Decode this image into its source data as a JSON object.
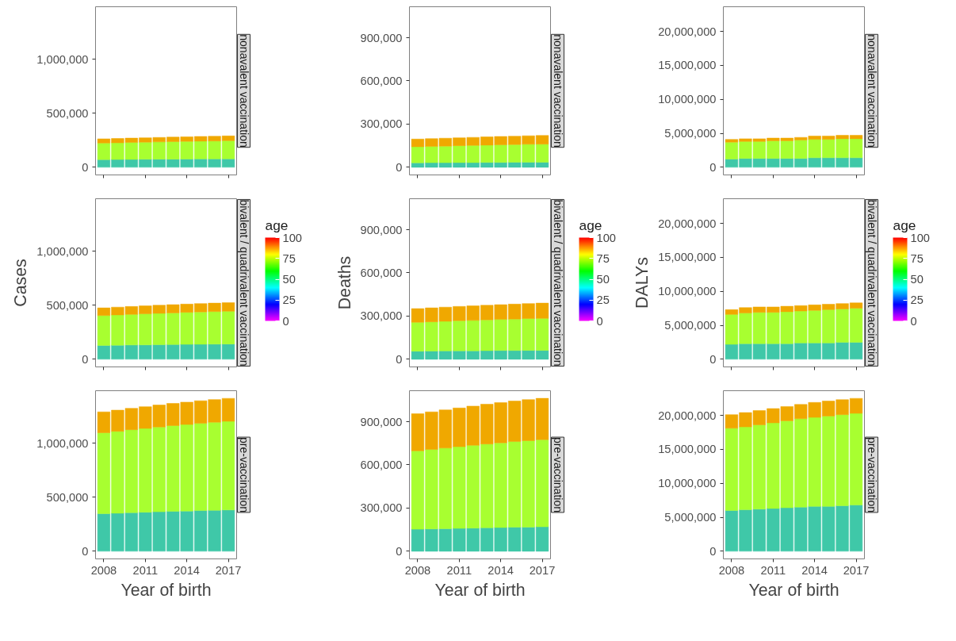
{
  "chart_data": [
    {
      "type": "bar",
      "stacked": true,
      "title": "nonavalent vaccination",
      "x": [
        2008,
        2009,
        2010,
        2011,
        2012,
        2013,
        2014,
        2015,
        2016,
        2017
      ],
      "xlim": [
        2007.4,
        2017.6
      ],
      "xticks": [
        2008,
        2011,
        2014,
        2017
      ],
      "ylim": [
        -70700,
        1484700
      ],
      "yticks": [
        0,
        {
          "value": 500000,
          "label": "500,000"
        },
        {
          "value": 1000000,
          "label": "1,000,000"
        }
      ],
      "tick_labels": "y",
      "grid": false,
      "series": [
        {
          "color": "#3fc8a8",
          "values": [
            71000,
            72000,
            73000,
            74000,
            75000,
            75000,
            76000,
            77000,
            77000,
            78000
          ]
        },
        {
          "color": "#a8ff30",
          "values": [
            153000,
            154000,
            157000,
            158000,
            160000,
            162000,
            164000,
            165000,
            166000,
            168000
          ]
        },
        {
          "color": "#f0a800",
          "values": [
            39000,
            40000,
            40000,
            41000,
            41000,
            42000,
            42000,
            43000,
            44000,
            44000
          ]
        }
      ]
    },
    {
      "type": "bar",
      "stacked": true,
      "title": "nonavalent vaccination",
      "x": [
        2008,
        2009,
        2010,
        2011,
        2012,
        2013,
        2014,
        2015,
        2016,
        2017
      ],
      "xlim": [
        2007.4,
        2017.6
      ],
      "xticks": [
        2008,
        2011,
        2014,
        2017
      ],
      "ylim": [
        -53000,
        1115000
      ],
      "yticks": [
        0,
        {
          "value": 300000,
          "label": "300,000"
        },
        {
          "value": 600000,
          "label": "600,000"
        },
        {
          "value": 900000,
          "label": "900,000"
        }
      ],
      "tick_labels": "y",
      "grid": false,
      "series": [
        {
          "color": "#3fc8a8",
          "values": [
            31000,
            32000,
            32000,
            33000,
            33000,
            34000,
            34000,
            35000,
            35000,
            35000
          ]
        },
        {
          "color": "#a8ff30",
          "values": [
            112000,
            113000,
            115000,
            117000,
            119000,
            120000,
            122000,
            123000,
            125000,
            126000
          ]
        },
        {
          "color": "#f0a800",
          "values": [
            53000,
            54000,
            55000,
            55000,
            56000,
            57000,
            58000,
            58000,
            59000,
            60000
          ]
        }
      ]
    },
    {
      "type": "bar",
      "stacked": true,
      "title": "nonavalent vaccination",
      "x": [
        2008,
        2009,
        2010,
        2011,
        2012,
        2013,
        2014,
        2015,
        2016,
        2017
      ],
      "xlim": [
        2007.4,
        2017.6
      ],
      "xticks": [
        2008,
        2011,
        2014,
        2017
      ],
      "ylim": [
        -1125000,
        23625000
      ],
      "yticks": [
        0,
        {
          "value": 5000000,
          "label": "5,000,000"
        },
        {
          "value": 10000000,
          "label": "10,000,000"
        },
        {
          "value": 15000000,
          "label": "15,000,000"
        },
        {
          "value": 20000000,
          "label": "20,000,000"
        }
      ],
      "tick_labels": "y",
      "grid": false,
      "series": [
        {
          "color": "#3fc8a8",
          "values": [
            1200000,
            1300000,
            1300000,
            1300000,
            1300000,
            1300000,
            1400000,
            1400000,
            1400000,
            1400000
          ]
        },
        {
          "color": "#a8ff30",
          "values": [
            2500000,
            2500000,
            2500000,
            2600000,
            2600000,
            2700000,
            2700000,
            2700000,
            2800000,
            2800000
          ]
        },
        {
          "color": "#f0a800",
          "values": [
            400000,
            400000,
            400000,
            400000,
            400000,
            400000,
            500000,
            500000,
            500000,
            500000
          ]
        }
      ]
    },
    {
      "type": "bar",
      "stacked": true,
      "title": "bivalent / quadrivalent vaccination",
      "ylabel": "Cases",
      "clabel": "age",
      "clim": [
        0,
        100
      ],
      "cticks": [
        0,
        25,
        50,
        75,
        100
      ],
      "x": [
        2008,
        2009,
        2010,
        2011,
        2012,
        2013,
        2014,
        2015,
        2016,
        2017
      ],
      "xlim": [
        2007.4,
        2017.6
      ],
      "xticks": [
        2008,
        2011,
        2014,
        2017
      ],
      "ylim": [
        -70700,
        1484700
      ],
      "yticks": [
        0,
        {
          "value": 500000,
          "label": "500,000"
        },
        {
          "value": 1000000,
          "label": "1,000,000"
        }
      ],
      "tick_labels": "y",
      "grid": false,
      "series": [
        {
          "color": "#3fc8a8",
          "values": [
            128000,
            130000,
            132000,
            133000,
            135000,
            136000,
            138000,
            139000,
            140000,
            141000
          ]
        },
        {
          "color": "#a8ff30",
          "values": [
            276000,
            280000,
            283000,
            287000,
            290000,
            293000,
            296000,
            299000,
            301000,
            303000
          ]
        },
        {
          "color": "#f0a800",
          "values": [
            71000,
            72000,
            73000,
            74000,
            75000,
            76000,
            76000,
            77000,
            78000,
            79000
          ]
        }
      ]
    },
    {
      "type": "bar",
      "stacked": true,
      "title": "bivalent / quadrivalent vaccination",
      "ylabel": "Deaths",
      "clabel": "age",
      "clim": [
        0,
        100
      ],
      "cticks": [
        0,
        25,
        50,
        75,
        100
      ],
      "x": [
        2008,
        2009,
        2010,
        2011,
        2012,
        2013,
        2014,
        2015,
        2016,
        2017
      ],
      "xlim": [
        2007.4,
        2017.6
      ],
      "xticks": [
        2008,
        2011,
        2014,
        2017
      ],
      "ylim": [
        -53000,
        1115000
      ],
      "yticks": [
        0,
        {
          "value": 300000,
          "label": "300,000"
        },
        {
          "value": 600000,
          "label": "600,000"
        },
        {
          "value": 900000,
          "label": "900,000"
        }
      ],
      "tick_labels": "y",
      "grid": false,
      "series": [
        {
          "color": "#3fc8a8",
          "values": [
            56000,
            57000,
            58000,
            59000,
            59000,
            60000,
            61000,
            61000,
            62000,
            62000
          ]
        },
        {
          "color": "#a8ff30",
          "values": [
            201000,
            203000,
            206000,
            209000,
            211000,
            214000,
            216000,
            218000,
            221000,
            222000
          ]
        },
        {
          "color": "#f0a800",
          "values": [
            95000,
            97000,
            98000,
            99000,
            101000,
            101000,
            102000,
            104000,
            104000,
            106000
          ]
        }
      ]
    },
    {
      "type": "bar",
      "stacked": true,
      "title": "bivalent / quadrivalent vaccination",
      "ylabel": "DALYs",
      "clabel": "age",
      "clim": [
        0,
        100
      ],
      "cticks": [
        0,
        25,
        50,
        75,
        100
      ],
      "x": [
        2008,
        2009,
        2010,
        2011,
        2012,
        2013,
        2014,
        2015,
        2016,
        2017
      ],
      "xlim": [
        2007.4,
        2017.6
      ],
      "xticks": [
        2008,
        2011,
        2014,
        2017
      ],
      "ylim": [
        -1125000,
        23625000
      ],
      "yticks": [
        0,
        {
          "value": 5000000,
          "label": "5,000,000"
        },
        {
          "value": 10000000,
          "label": "10,000,000"
        },
        {
          "value": 15000000,
          "label": "15,000,000"
        },
        {
          "value": 20000000,
          "label": "20,000,000"
        }
      ],
      "tick_labels": "y",
      "grid": false,
      "series": [
        {
          "color": "#3fc8a8",
          "values": [
            2200000,
            2300000,
            2300000,
            2300000,
            2300000,
            2400000,
            2400000,
            2400000,
            2500000,
            2500000
          ]
        },
        {
          "color": "#a8ff30",
          "values": [
            4400000,
            4500000,
            4600000,
            4600000,
            4700000,
            4700000,
            4800000,
            4900000,
            4900000,
            5000000
          ]
        },
        {
          "color": "#f0a800",
          "values": [
            700000,
            800000,
            800000,
            800000,
            800000,
            800000,
            800000,
            800000,
            800000,
            800000
          ]
        }
      ]
    },
    {
      "type": "bar",
      "stacked": true,
      "title": "pre-vaccination",
      "xlabel": "Year of birth",
      "x": [
        2008,
        2009,
        2010,
        2011,
        2012,
        2013,
        2014,
        2015,
        2016,
        2017
      ],
      "xlim": [
        2007.4,
        2017.6
      ],
      "xticks": [
        2008,
        2011,
        2014,
        2017
      ],
      "ylim": [
        -70700,
        1484700
      ],
      "yticks": [
        0,
        {
          "value": 500000,
          "label": "500,000"
        },
        {
          "value": 1000000,
          "label": "1,000,000"
        }
      ],
      "grid": false,
      "series": [
        {
          "color": "#3fc8a8",
          "values": [
            348000,
            352000,
            357000,
            361000,
            365000,
            369000,
            372000,
            376000,
            379000,
            382000
          ]
        },
        {
          "color": "#a8ff30",
          "values": [
            748000,
            757000,
            767000,
            775000,
            784000,
            793000,
            800000,
            807000,
            814000,
            820000
          ]
        },
        {
          "color": "#f0a800",
          "values": [
            193000,
            196000,
            198000,
            201000,
            203000,
            205000,
            207000,
            209000,
            210000,
            212000
          ]
        }
      ]
    },
    {
      "type": "bar",
      "stacked": true,
      "title": "pre-vaccination",
      "xlabel": "Year of birth",
      "x": [
        2008,
        2009,
        2010,
        2011,
        2012,
        2013,
        2014,
        2015,
        2016,
        2017
      ],
      "xlim": [
        2007.4,
        2017.6
      ],
      "xticks": [
        2008,
        2011,
        2014,
        2017
      ],
      "ylim": [
        -53000,
        1115000
      ],
      "yticks": [
        0,
        {
          "value": 300000,
          "label": "300,000"
        },
        {
          "value": 600000,
          "label": "600,000"
        },
        {
          "value": 900000,
          "label": "900,000"
        }
      ],
      "grid": false,
      "series": [
        {
          "color": "#3fc8a8",
          "values": [
            153000,
            155000,
            157000,
            159000,
            161000,
            163000,
            165000,
            167000,
            168000,
            170000
          ]
        },
        {
          "color": "#a8ff30",
          "values": [
            544000,
            552000,
            560000,
            567000,
            575000,
            582000,
            588000,
            595000,
            600000,
            605000
          ]
        },
        {
          "color": "#f0a800",
          "values": [
            258000,
            261000,
            265000,
            269000,
            272000,
            276000,
            279000,
            281000,
            285000,
            287000
          ]
        }
      ]
    },
    {
      "type": "bar",
      "stacked": true,
      "title": "pre-vaccination",
      "xlabel": "Year of birth",
      "x": [
        2008,
        2009,
        2010,
        2011,
        2012,
        2013,
        2014,
        2015,
        2016,
        2017
      ],
      "xlim": [
        2007.4,
        2017.6
      ],
      "xticks": [
        2008,
        2011,
        2014,
        2017
      ],
      "ylim": [
        -1125000,
        23625000
      ],
      "yticks": [
        0,
        {
          "value": 5000000,
          "label": "5,000,000"
        },
        {
          "value": 10000000,
          "label": "10,000,000"
        },
        {
          "value": 15000000,
          "label": "15,000,000"
        },
        {
          "value": 20000000,
          "label": "20,000,000"
        }
      ],
      "grid": false,
      "series": [
        {
          "color": "#3fc8a8",
          "values": [
            6000000,
            6100000,
            6200000,
            6300000,
            6400000,
            6500000,
            6600000,
            6600000,
            6700000,
            6800000
          ]
        },
        {
          "color": "#a8ff30",
          "values": [
            12100000,
            12200000,
            12400000,
            12600000,
            12800000,
            13000000,
            13100000,
            13300000,
            13400000,
            13500000
          ]
        },
        {
          "color": "#f0a800",
          "values": [
            2000000,
            2100000,
            2100000,
            2100000,
            2100000,
            2100000,
            2200000,
            2200000,
            2200000,
            2200000
          ]
        }
      ]
    }
  ]
}
